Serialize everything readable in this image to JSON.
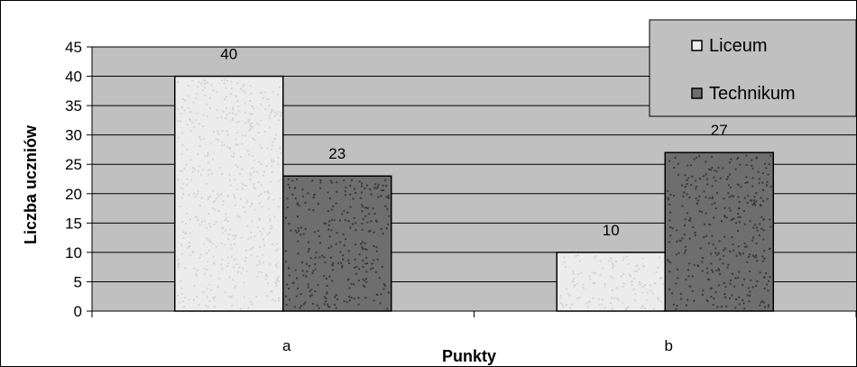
{
  "chart_data": {
    "type": "bar",
    "categories": [
      "a",
      "b"
    ],
    "series": [
      {
        "name": "Liceum",
        "values": [
          40,
          10
        ],
        "color": "#ececec"
      },
      {
        "name": "Technikum",
        "values": [
          23,
          27
        ],
        "color": "#6e6e6e"
      }
    ],
    "xlabel": "Punkty",
    "ylabel": "Liczba uczniów",
    "ylim": [
      0,
      45
    ],
    "yticks": [
      0,
      5,
      10,
      15,
      20,
      25,
      30,
      35,
      40,
      45
    ],
    "plot_background": "#c0c0c0",
    "grid": true,
    "legend_position": "top-right"
  }
}
